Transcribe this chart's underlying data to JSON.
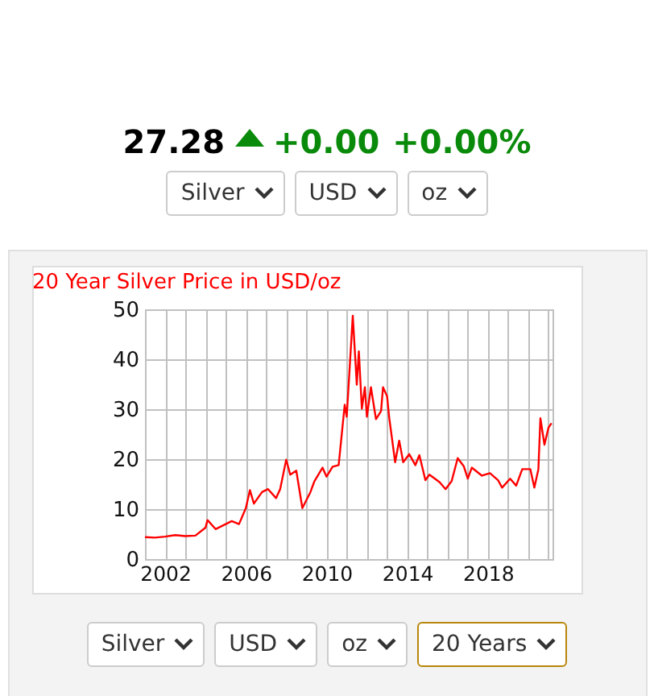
{
  "chart_data": {
    "type": "line",
    "title": "20 Year Silver Price in USD/oz",
    "annotations": [
      "27.28",
      "+0.00",
      "+0.00%",
      "Silver",
      "USD",
      "oz",
      "Silver",
      "USD",
      "oz",
      "20 Years"
    ],
    "x": [
      2001.0,
      2001.5,
      2002.0,
      2002.5,
      2003.0,
      2003.5,
      2004.0,
      2004.1,
      2004.5,
      2005.0,
      2005.3,
      2005.66,
      2006.0,
      2006.2,
      2006.4,
      2006.8,
      2007.1,
      2007.5,
      2007.7,
      2008.0,
      2008.2,
      2008.5,
      2008.8,
      2009.2,
      2009.4,
      2009.8,
      2010.0,
      2010.3,
      2010.6,
      2010.9,
      2011.0,
      2011.3,
      2011.5,
      2011.6,
      2011.75,
      2011.9,
      2012.0,
      2012.2,
      2012.45,
      2012.7,
      2012.8,
      2013.0,
      2013.1,
      2013.4,
      2013.6,
      2013.8,
      2014.1,
      2014.4,
      2014.6,
      2014.9,
      2015.1,
      2015.6,
      2015.9,
      2016.2,
      2016.5,
      2016.8,
      2017.0,
      2017.2,
      2017.7,
      2018.1,
      2018.5,
      2018.7,
      2019.1,
      2019.4,
      2019.7,
      2020.1,
      2020.3,
      2020.5,
      2020.6,
      2020.8,
      2021.0,
      2021.15
    ],
    "series": [
      {
        "color": "#ff0000",
        "values": [
          4.4,
          4.3,
          4.5,
          4.8,
          4.6,
          4.7,
          6.3,
          7.8,
          6.0,
          7.0,
          7.6,
          7.0,
          10.2,
          13.8,
          11.1,
          13.4,
          14.0,
          12.2,
          14.0,
          19.9,
          16.9,
          17.7,
          10.2,
          13.4,
          15.6,
          18.3,
          16.5,
          18.5,
          18.8,
          30.9,
          28.5,
          48.7,
          34.9,
          41.6,
          30.1,
          34.4,
          28.5,
          34.4,
          28.0,
          29.6,
          34.4,
          32.6,
          28.5,
          19.4,
          23.7,
          19.4,
          21.0,
          18.8,
          20.8,
          15.8,
          16.9,
          15.4,
          14.0,
          15.6,
          20.2,
          18.6,
          16.1,
          18.3,
          16.7,
          17.2,
          15.8,
          14.3,
          16.1,
          14.7,
          18.0,
          18.0,
          14.3,
          18.0,
          28.2,
          22.9,
          26.3,
          27.2
        ]
      }
    ],
    "xlim": [
      2001.0,
      2021.2
    ],
    "xticks": [
      2002,
      {
        "value": 2003,
        "label": null
      },
      {
        "value": 2004,
        "label": null
      },
      {
        "value": 2005,
        "label": null
      },
      2006,
      {
        "value": 2007,
        "label": null
      },
      {
        "value": 2008,
        "label": null
      },
      {
        "value": 2009,
        "label": null
      },
      2010,
      {
        "value": 2011,
        "label": null
      },
      {
        "value": 2012,
        "label": null
      },
      {
        "value": 2013,
        "label": null
      },
      2014,
      {
        "value": 2015,
        "label": null
      },
      {
        "value": 2016,
        "label": null
      },
      {
        "value": 2017,
        "label": null
      },
      2018,
      {
        "value": 2019,
        "label": null
      },
      {
        "value": 2020,
        "label": null
      },
      {
        "value": 2021,
        "label": null
      }
    ],
    "ylim": [
      0,
      50
    ],
    "yticks": [
      0,
      10,
      20,
      30,
      40,
      50
    ],
    "grid": true,
    "line_style": "solid",
    "marker": "none"
  }
}
